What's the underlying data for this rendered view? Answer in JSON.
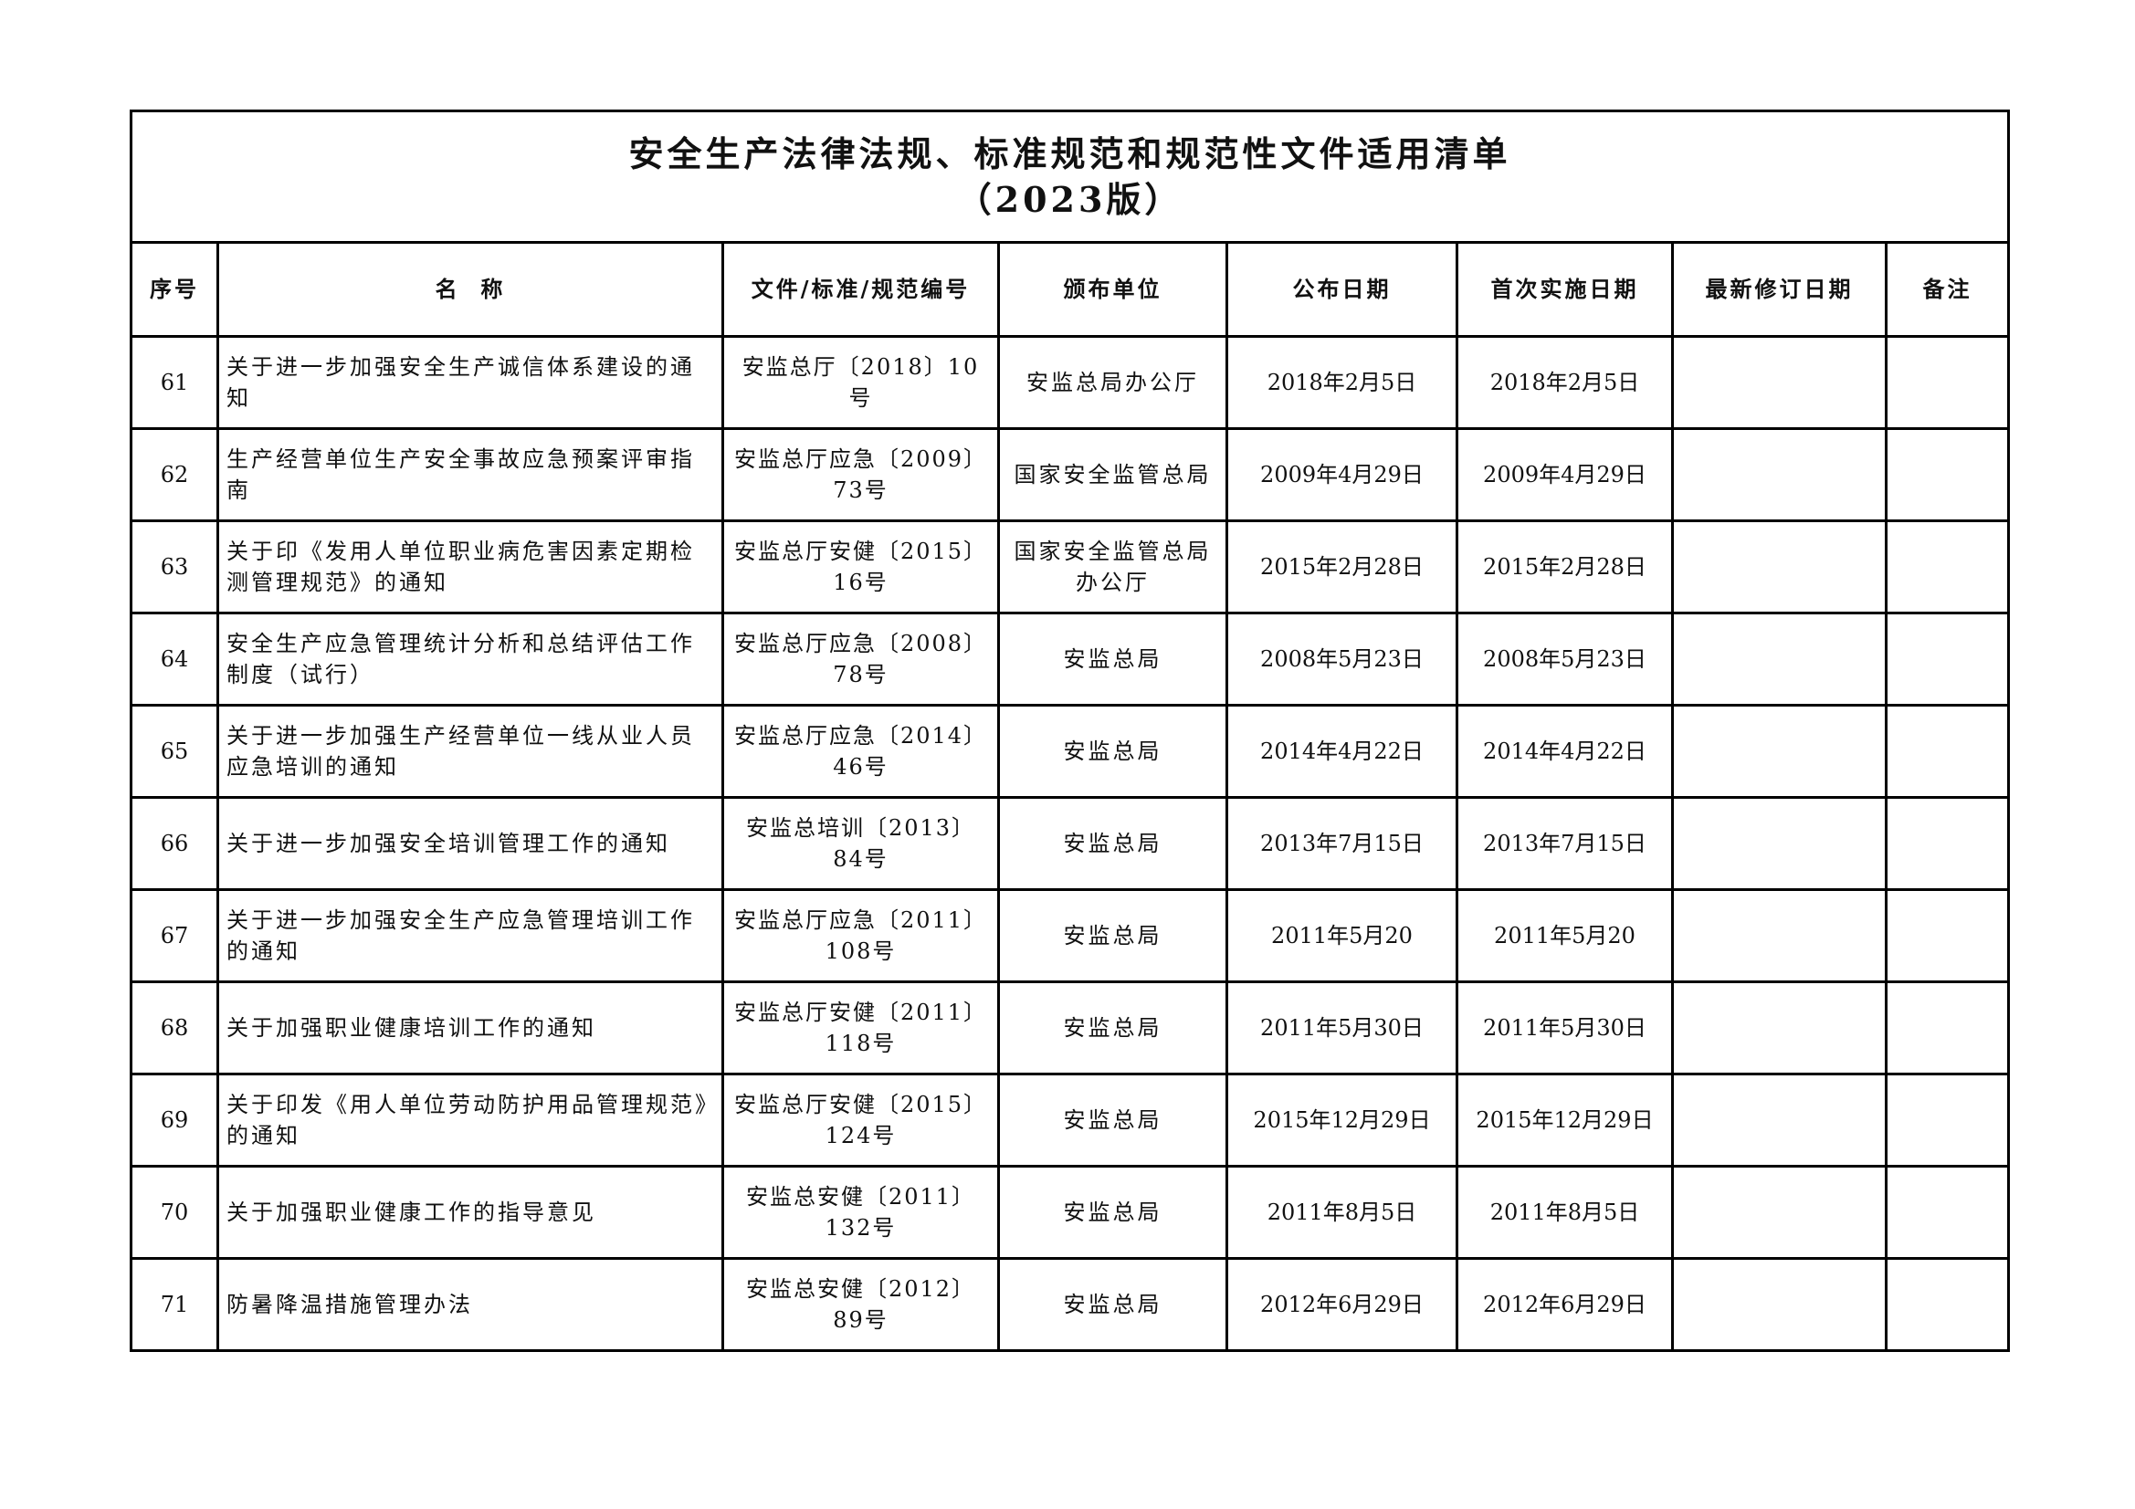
{
  "title_line1": "安全生产法律法规、标准规范和规范性文件适用清单",
  "title_line2": "（2023版）",
  "headers": [
    "序号",
    "名  称",
    "文件/标准/规范编号",
    "颁布单位",
    "公布日期",
    "首次实施日期",
    "最新修订日期",
    "备注"
  ],
  "rows": [
    {
      "no": "61",
      "name": "关于进一步加强安全生产诚信体系建设的通知",
      "code": "安监总厅〔2018〕10号",
      "issuer": "安监总局办公厅",
      "published": "2018年2月5日",
      "effective": "2018年2月5日",
      "revised": "",
      "note": ""
    },
    {
      "no": "62",
      "name": "生产经营单位生产安全事故应急预案评审指南",
      "code": "安监总厅应急〔2009〕73号",
      "issuer": "国家安全监管总局",
      "published": "2009年4月29日",
      "effective": "2009年4月29日",
      "revised": "",
      "note": ""
    },
    {
      "no": "63",
      "name": "关于印《发用人单位职业病危害因素定期检测管理规范》的通知",
      "code": "安监总厅安健〔2015〕16号",
      "issuer": "国家安全监管总局办公厅",
      "published": "2015年2月28日",
      "effective": "2015年2月28日",
      "revised": "",
      "note": ""
    },
    {
      "no": "64",
      "name": "安全生产应急管理统计分析和总结评估工作制度（试行）",
      "code": "安监总厅应急〔2008〕78号",
      "issuer": "安监总局",
      "published": "2008年5月23日",
      "effective": "2008年5月23日",
      "revised": "",
      "note": ""
    },
    {
      "no": "65",
      "name": "关于进一步加强生产经营单位一线从业人员应急培训的通知",
      "code": "安监总厅应急〔2014〕46号",
      "issuer": "安监总局",
      "published": "2014年4月22日",
      "effective": "2014年4月22日",
      "revised": "",
      "note": ""
    },
    {
      "no": "66",
      "name": "关于进一步加强安全培训管理工作的通知",
      "code": "安监总培训〔2013〕84号",
      "issuer": "安监总局",
      "published": "2013年7月15日",
      "effective": "2013年7月15日",
      "revised": "",
      "note": ""
    },
    {
      "no": "67",
      "name": "关于进一步加强安全生产应急管理培训工作的通知",
      "code": "安监总厅应急〔2011〕108号",
      "issuer": "安监总局",
      "published": "2011年5月20",
      "effective": "2011年5月20",
      "revised": "",
      "note": ""
    },
    {
      "no": "68",
      "name": "关于加强职业健康培训工作的通知",
      "code": "安监总厅安健〔2011〕118号",
      "issuer": "安监总局",
      "published": "2011年5月30日",
      "effective": "2011年5月30日",
      "revised": "",
      "note": ""
    },
    {
      "no": "69",
      "name": "关于印发《用人单位劳动防护用品管理规范》的通知",
      "code": "安监总厅安健〔2015〕124号",
      "issuer": "安监总局",
      "published": "2015年12月29日",
      "effective": "2015年12月29日",
      "revised": "",
      "note": ""
    },
    {
      "no": "70",
      "name": "关于加强职业健康工作的指导意见",
      "code": "安监总安健〔2011〕132号",
      "issuer": "安监总局",
      "published": "2011年8月5日",
      "effective": "2011年8月5日",
      "revised": "",
      "note": ""
    },
    {
      "no": "71",
      "name": "防暑降温措施管理办法",
      "code": "安监总安健〔2012〕89号",
      "issuer": "安监总局",
      "published": "2012年6月29日",
      "effective": "2012年6月29日",
      "revised": "",
      "note": ""
    }
  ]
}
